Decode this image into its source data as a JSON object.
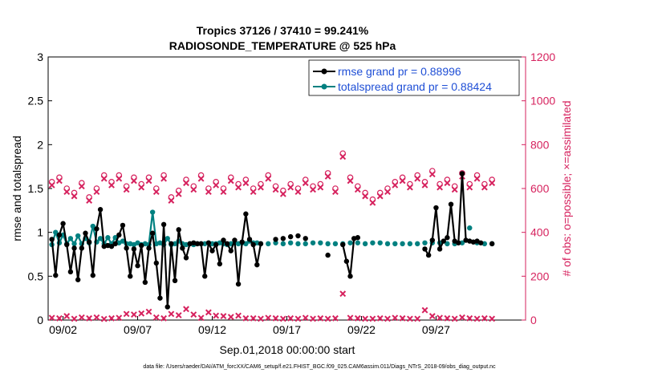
{
  "chart_data": {
    "type": "line",
    "title": "Tropics 37126 / 37410 = 99.241%",
    "subtitle": "RADIOSONDE_TEMPERATURE @ 525 hPa",
    "xlabel": "Sep.01,2018 00:00:00 start",
    "ylabel_left": "rmse and totalspread",
    "ylabel_right": "# of obs: o=possible; ×=assimilated",
    "footnote": "data file: /Users/raeder/DAI/ATM_forcXX/CAM6_setup/f.e21.FHIST_BGC.f09_025.CAM6assim.011/Diags_NTrS_2018-09/obs_diag_output.nc",
    "xlim": [
      1,
      33
    ],
    "ylim_left": [
      0,
      3
    ],
    "ylim_right": [
      0,
      1200
    ],
    "xticks": [
      2,
      7,
      12,
      17,
      22,
      27
    ],
    "xtick_labels": [
      "09/02",
      "09/07",
      "09/12",
      "09/17",
      "09/22",
      "09/27"
    ],
    "yticks_left": [
      0,
      0.5,
      1,
      1.5,
      2,
      2.5,
      3
    ],
    "ytick_labels_left": [
      "0",
      "0.5",
      "1",
      "1.5",
      "2",
      "2.5",
      "3"
    ],
    "yticks_right": [
      0,
      200,
      400,
      600,
      800,
      1000,
      1200
    ],
    "ytick_labels_right": [
      "0",
      "200",
      "400",
      "600",
      "800",
      "1000",
      "1200"
    ],
    "legend_position": "top-right",
    "colors": {
      "rmse": "#000000",
      "spread": "#008080",
      "obs": "#d6225e",
      "legend_text": "#1f4fd6",
      "axis": "#000000"
    },
    "series": [
      {
        "name": "rmse grand pr = 0.88996",
        "color": "#000000",
        "x": [
          1.25,
          1.5,
          1.75,
          2.0,
          2.25,
          2.5,
          2.75,
          3.0,
          3.25,
          3.5,
          3.75,
          4.0,
          4.25,
          4.5,
          4.75,
          5.0,
          5.25,
          5.5,
          5.75,
          6.0,
          6.25,
          6.5,
          6.75,
          7.0,
          7.25,
          7.5,
          7.75,
          8.0,
          8.25,
          8.5,
          8.75,
          9.0,
          9.25,
          9.5,
          9.75,
          10.0,
          10.25,
          10.5,
          10.75,
          11.0,
          11.25,
          11.5,
          11.75,
          12.0,
          12.25,
          12.5,
          12.75,
          13.0,
          13.25,
          13.5,
          13.75,
          14.0,
          14.25,
          14.5,
          14.75,
          15.0,
          15.25,
          16.25,
          16.75,
          17.25,
          17.75,
          18.25,
          19.75,
          20.75,
          21.0,
          21.25,
          21.5,
          21.75,
          26.25,
          26.5,
          26.75,
          27.0,
          27.25,
          27.5,
          27.75,
          28.0,
          28.25,
          28.5,
          28.75,
          29.0,
          29.25,
          29.5,
          29.75,
          30.0,
          30.75
        ],
        "values": [
          0.92,
          0.51,
          0.97,
          1.1,
          0.86,
          0.55,
          0.82,
          0.46,
          0.82,
          0.99,
          0.89,
          0.51,
          1.04,
          1.26,
          0.84,
          0.85,
          0.84,
          0.87,
          0.97,
          1.08,
          0.82,
          0.5,
          0.81,
          0.62,
          0.85,
          0.43,
          0.82,
          0.99,
          0.65,
          0.25,
          1.09,
          0.15,
          0.87,
          0.45,
          1.03,
          0.82,
          0.71,
          0.87,
          0.88,
          0.87,
          0.87,
          0.5,
          0.88,
          0.79,
          0.86,
          0.64,
          0.91,
          0.87,
          0.79,
          0.91,
          0.41,
          0.89,
          1.21,
          0.92,
          0.86,
          0.63,
          0.87,
          0.92,
          0.93,
          0.95,
          0.96,
          0.93,
          0.74,
          0.86,
          0.67,
          0.5,
          0.93,
          0.94,
          0.81,
          0.74,
          0.91,
          1.28,
          0.81,
          0.9,
          0.94,
          1.32,
          0.9,
          0.88,
          1.67,
          0.91,
          0.9,
          0.89,
          0.9,
          0.88,
          0.87
        ]
      },
      {
        "name": "totalspread grand pr = 0.88424",
        "color": "#008080",
        "x": [
          1.25,
          1.5,
          1.75,
          2.0,
          2.25,
          2.5,
          2.75,
          3.0,
          3.25,
          3.5,
          3.75,
          4.0,
          4.25,
          4.5,
          4.75,
          5.0,
          5.25,
          5.5,
          5.75,
          6.0,
          6.25,
          6.5,
          6.75,
          7.0,
          7.25,
          7.5,
          7.75,
          8.0,
          8.25,
          8.5,
          8.75,
          9.0,
          9.25,
          9.5,
          9.75,
          10.0,
          10.25,
          10.5,
          10.75,
          11.0,
          11.25,
          11.5,
          11.75,
          12.0,
          12.25,
          12.5,
          12.75,
          13.0,
          13.25,
          13.5,
          13.75,
          14.0,
          14.25,
          14.5,
          14.75,
          15.0,
          15.25,
          15.75,
          16.25,
          16.75,
          17.25,
          17.75,
          18.25,
          18.75,
          19.25,
          19.75,
          20.25,
          20.75,
          21.25,
          21.75,
          22.25,
          22.75,
          23.25,
          23.75,
          24.25,
          24.75,
          25.25,
          25.75,
          26.25,
          26.75,
          27.25,
          27.75,
          28.25,
          28.75,
          29.25,
          29.75,
          30.25,
          30.75
        ],
        "values": [
          0.86,
          1.0,
          0.88,
          0.97,
          0.87,
          0.93,
          0.87,
          0.96,
          0.87,
          0.93,
          0.88,
          1.07,
          0.89,
          0.93,
          0.87,
          0.94,
          0.87,
          0.94,
          0.88,
          0.9,
          0.87,
          0.87,
          0.86,
          0.88,
          0.86,
          0.87,
          0.86,
          1.23,
          0.87,
          0.88,
          0.86,
          0.93,
          0.86,
          0.87,
          0.9,
          0.87,
          0.86,
          0.87,
          0.86,
          0.87,
          0.87,
          0.87,
          0.88,
          0.87,
          0.87,
          0.88,
          0.87,
          0.86,
          0.87,
          0.88,
          0.87,
          0.88,
          0.87,
          0.9,
          0.88,
          0.88,
          0.87,
          0.87,
          0.88,
          0.87,
          0.88,
          0.87,
          0.87,
          0.88,
          0.88,
          0.87,
          0.87,
          0.87,
          0.88,
          0.88,
          0.87,
          0.88,
          0.88,
          0.87,
          0.87,
          0.87,
          0.87,
          0.87,
          0.88,
          0.88,
          0.88,
          0.87,
          0.87,
          0.88,
          1.05,
          0.88,
          0.87,
          0.87
        ]
      }
    ],
    "obs_possible": {
      "x": [
        1.25,
        1.75,
        2.25,
        2.75,
        3.25,
        3.75,
        4.25,
        4.75,
        5.25,
        5.75,
        6.25,
        6.75,
        7.25,
        7.75,
        8.25,
        8.75,
        9.25,
        9.75,
        10.25,
        10.75,
        11.25,
        11.75,
        12.25,
        12.75,
        13.25,
        13.75,
        14.25,
        14.75,
        15.25,
        15.75,
        16.25,
        16.75,
        17.25,
        17.75,
        18.25,
        18.75,
        19.25,
        19.75,
        20.25,
        20.75,
        21.25,
        21.75,
        22.25,
        22.75,
        23.25,
        23.75,
        24.25,
        24.75,
        25.25,
        25.75,
        26.25,
        26.75,
        27.25,
        27.75,
        28.25,
        28.75,
        29.25,
        29.75,
        30.25,
        30.75
      ],
      "values": [
        630,
        650,
        600,
        580,
        625,
        560,
        600,
        660,
        630,
        660,
        610,
        650,
        620,
        650,
        600,
        660,
        560,
        590,
        640,
        610,
        660,
        600,
        630,
        600,
        650,
        620,
        640,
        600,
        620,
        660,
        610,
        590,
        620,
        600,
        640,
        610,
        620,
        670,
        600,
        760,
        650,
        610,
        580,
        550,
        580,
        600,
        630,
        650,
        620,
        660,
        630,
        680,
        620,
        640,
        610,
        670,
        620,
        660,
        620,
        640
      ]
    },
    "obs_assimilated": {
      "x": [
        1.25,
        1.75,
        2.25,
        2.75,
        3.25,
        3.75,
        4.25,
        4.75,
        5.25,
        5.75,
        6.25,
        6.75,
        7.25,
        7.75,
        8.25,
        8.75,
        9.25,
        9.75,
        10.25,
        10.75,
        11.25,
        11.75,
        12.25,
        12.75,
        13.25,
        13.75,
        14.25,
        14.75,
        15.25,
        15.75,
        16.25,
        16.75,
        17.25,
        17.75,
        18.25,
        18.75,
        19.25,
        19.75,
        20.25,
        20.75,
        21.25,
        21.75,
        22.25,
        22.75,
        23.25,
        23.75,
        24.25,
        24.75,
        25.25,
        25.75,
        26.25,
        26.75,
        27.25,
        27.75,
        28.25,
        28.75,
        29.25,
        29.75,
        30.25,
        30.75
      ],
      "values": [
        10,
        8,
        18,
        6,
        12,
        8,
        12,
        5,
        8,
        10,
        28,
        25,
        30,
        38,
        12,
        8,
        28,
        22,
        50,
        25,
        10,
        35,
        20,
        18,
        14,
        20,
        8,
        8,
        6,
        10,
        8,
        6,
        8,
        6,
        10,
        6,
        8,
        6,
        8,
        120,
        10,
        8,
        6,
        6,
        8,
        6,
        10,
        8,
        6,
        6,
        45,
        18,
        10,
        8,
        6,
        12,
        8,
        6,
        8,
        6
      ]
    }
  }
}
